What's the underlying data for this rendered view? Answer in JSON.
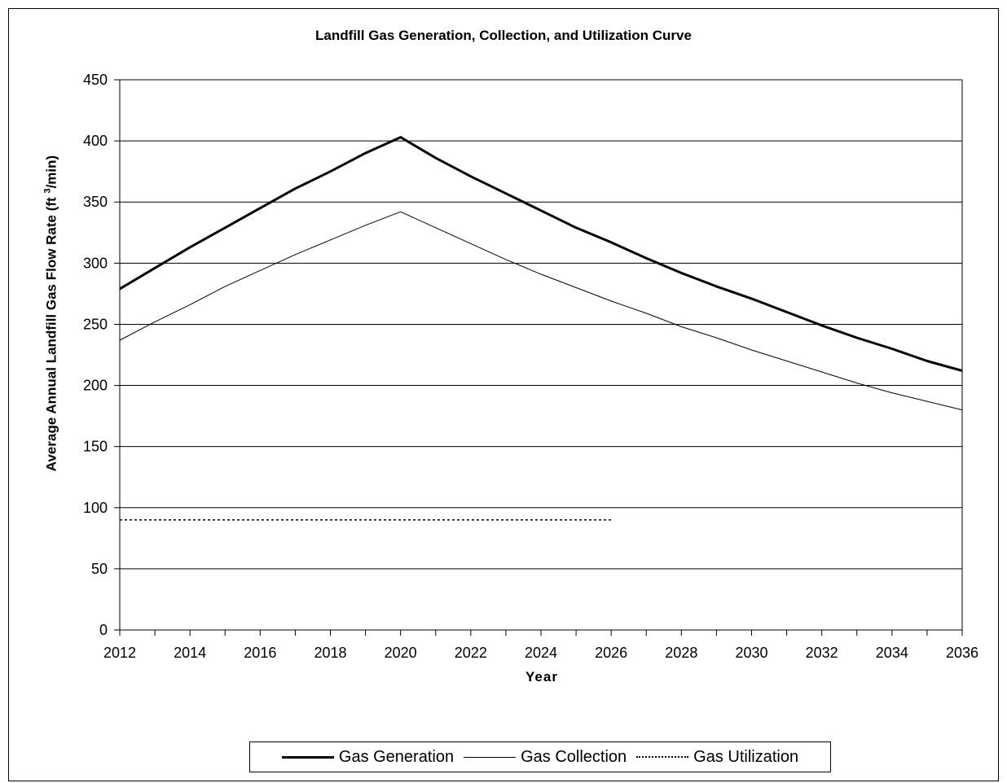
{
  "chart_data": {
    "type": "line",
    "title": "Landfill Gas Generation, Collection, and Utilization Curve",
    "ylabel_main": "Average Annual Landfill Gas Flow Rate (ft",
    "ylabel_sup": "3",
    "ylabel_end": "/min)",
    "xlabel": "Year",
    "xlim": [
      2012,
      2036
    ],
    "ylim": [
      0,
      450
    ],
    "x_ticks": [
      "2012",
      "2014",
      "2016",
      "2018",
      "2020",
      "2022",
      "2024",
      "2026",
      "2028",
      "2030",
      "2032",
      "2034",
      "2036"
    ],
    "y_ticks": [
      "0",
      "50",
      "100",
      "150",
      "200",
      "250",
      "300",
      "350",
      "400",
      "450"
    ],
    "grid": "horizontal",
    "legend_position": "bottom",
    "series": [
      {
        "name": "Gas Generation",
        "color": "#000000",
        "style": "thick",
        "x": [
          2012,
          2013,
          2014,
          2015,
          2016,
          2017,
          2018,
          2019,
          2020,
          2021,
          2022,
          2023,
          2024,
          2025,
          2026,
          2027,
          2028,
          2029,
          2030,
          2031,
          2032,
          2033,
          2034,
          2035,
          2036
        ],
        "y": [
          279,
          296,
          313,
          329,
          345,
          361,
          375,
          390,
          403,
          386,
          371,
          357,
          343,
          329,
          317,
          304,
          292,
          281,
          271,
          260,
          249,
          239,
          230,
          220,
          212
        ]
      },
      {
        "name": "Gas Collection",
        "color": "#000000",
        "style": "thin",
        "x": [
          2012,
          2013,
          2014,
          2015,
          2016,
          2017,
          2018,
          2019,
          2020,
          2021,
          2022,
          2023,
          2024,
          2025,
          2026,
          2027,
          2028,
          2029,
          2030,
          2031,
          2032,
          2033,
          2034,
          2035,
          2036
        ],
        "y": [
          237,
          252,
          266,
          281,
          294,
          307,
          319,
          331,
          342,
          329,
          316,
          303,
          291,
          280,
          269,
          259,
          248,
          239,
          229,
          220,
          211,
          202,
          194,
          187,
          180
        ]
      },
      {
        "name": "Gas Utilization",
        "color": "#000000",
        "style": "dotted",
        "x": [
          2012,
          2014,
          2016,
          2018,
          2020,
          2022,
          2024,
          2026
        ],
        "y": [
          90,
          90,
          90,
          90,
          90,
          90,
          90,
          90
        ]
      }
    ]
  }
}
